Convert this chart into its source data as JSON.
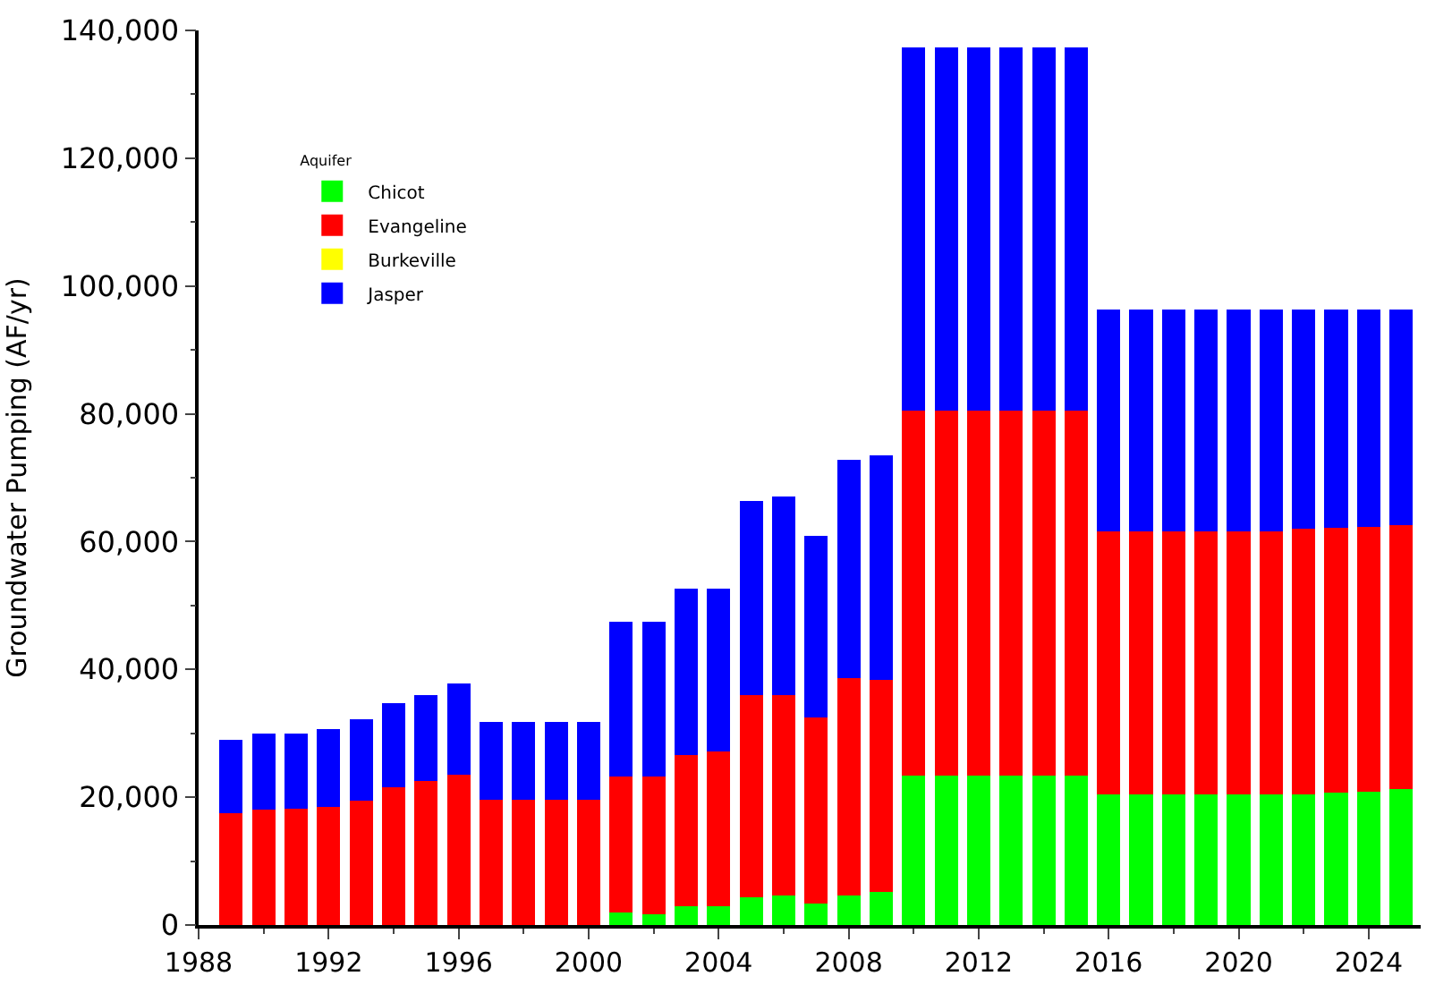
{
  "chart_data": {
    "type": "bar",
    "stacked": true,
    "ylabel": "Groundwater Pumping (AF/yr)",
    "legend_title": "Aquifer",
    "legend": "top left",
    "x": [
      1989,
      1990,
      1991,
      1992,
      1993,
      1994,
      1995,
      1996,
      1997,
      1998,
      1999,
      2000,
      2001,
      2002,
      2003,
      2004,
      2005,
      2006,
      2007,
      2008,
      2009,
      2010,
      2011,
      2012,
      2013,
      2014,
      2015,
      2016,
      2017,
      2018,
      2019,
      2020,
      2021,
      2022,
      2023,
      2024,
      2025
    ],
    "xlim": [
      1988,
      2025.6
    ],
    "xticks": [
      1988,
      1992,
      1996,
      2000,
      2004,
      2008,
      2012,
      2016,
      2020,
      2024
    ],
    "ylim": [
      0,
      140000
    ],
    "yticks": [
      {
        "value": 0,
        "label": "0"
      },
      {
        "value": 20000,
        "label": "20,000"
      },
      {
        "value": 40000,
        "label": "40,000"
      },
      {
        "value": 60000,
        "label": "60,000"
      },
      {
        "value": 80000,
        "label": "80,000"
      },
      {
        "value": 100000,
        "label": "100,000"
      },
      {
        "value": 120000,
        "label": "120,000"
      },
      {
        "value": 140000,
        "label": "140,000"
      }
    ],
    "series": [
      {
        "name": "Chicot",
        "color": "#00ff00",
        "values": [
          0,
          0,
          0,
          0,
          0,
          0,
          0,
          0,
          0,
          0,
          0,
          0,
          1900,
          1700,
          2900,
          2900,
          4400,
          4600,
          3400,
          4600,
          5200,
          23400,
          23400,
          23400,
          23400,
          23400,
          23400,
          20500,
          20500,
          20500,
          20500,
          20500,
          20500,
          20500,
          20700,
          20900,
          21300
        ]
      },
      {
        "name": "Evangeline",
        "color": "#ff0000",
        "values": [
          17500,
          18000,
          18200,
          18500,
          19400,
          21600,
          22500,
          23500,
          19600,
          19600,
          19600,
          19600,
          21400,
          21600,
          23700,
          24200,
          31600,
          31400,
          29100,
          34000,
          33200,
          57100,
          57100,
          57100,
          57100,
          57100,
          57100,
          41100,
          41100,
          41100,
          41100,
          41100,
          41100,
          41500,
          41400,
          41400,
          41300
        ]
      },
      {
        "name": "Burkeville",
        "color": "#ffff00",
        "values": [
          0,
          0,
          0,
          0,
          0,
          0,
          0,
          0,
          0,
          0,
          0,
          0,
          0,
          0,
          0,
          0,
          0,
          0,
          0,
          0,
          0,
          0,
          0,
          0,
          0,
          0,
          0,
          0,
          0,
          0,
          0,
          0,
          0,
          0,
          0,
          0,
          0
        ]
      },
      {
        "name": "Jasper",
        "color": "#0000ff",
        "values": [
          11500,
          12000,
          11800,
          12100,
          12800,
          13100,
          13500,
          14300,
          12200,
          12200,
          12200,
          12200,
          24100,
          24100,
          26100,
          25600,
          30300,
          31100,
          28400,
          34200,
          35100,
          56900,
          56900,
          56900,
          56900,
          56900,
          56900,
          34700,
          34700,
          34700,
          34700,
          34700,
          34700,
          34300,
          34200,
          34000,
          33700
        ]
      }
    ]
  }
}
